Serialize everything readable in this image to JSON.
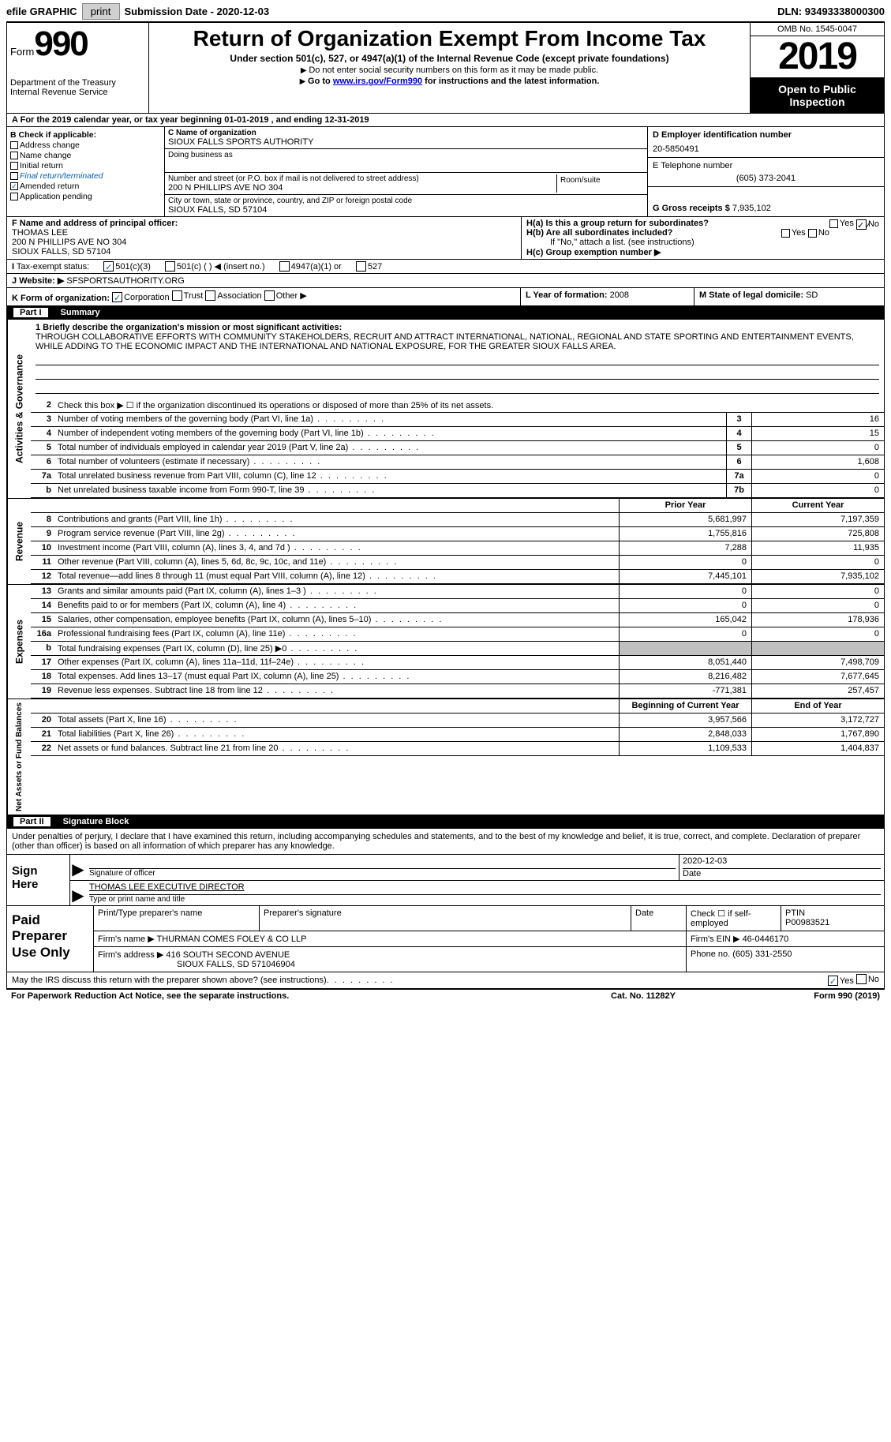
{
  "topbar": {
    "efile": "efile GRAPHIC",
    "print_btn": "print",
    "sub_date_lbl": "Submission Date - ",
    "sub_date": "2020-12-03",
    "dln_lbl": "DLN: ",
    "dln": "93493338000300"
  },
  "header": {
    "form_word": "Form",
    "form_num": "990",
    "dept": "Department of the Treasury\nInternal Revenue Service",
    "title": "Return of Organization Exempt From Income Tax",
    "subtitle": "Under section 501(c), 527, or 4947(a)(1) of the Internal Revenue Code (except private foundations)",
    "note1": "Do not enter social security numbers on this form as it may be made public.",
    "note2_pre": "Go to ",
    "note2_link": "www.irs.gov/Form990",
    "note2_post": " for instructions and the latest information.",
    "omb": "OMB No. 1545-0047",
    "year": "2019",
    "inspect": "Open to Public Inspection"
  },
  "row_a": "For the 2019 calendar year, or tax year beginning 01-01-2019   , and ending 12-31-2019",
  "col_b": {
    "head": "B Check if applicable:",
    "items": [
      "Address change",
      "Name change",
      "Initial return",
      "Final return/terminated",
      "Amended return",
      "Application pending"
    ],
    "checked_idx": 4
  },
  "col_c": {
    "name_lbl": "C Name of organization",
    "name": "SIOUX FALLS SPORTS AUTHORITY",
    "dba_lbl": "Doing business as",
    "addr_lbl": "Number and street (or P.O. box if mail is not delivered to street address)",
    "room_lbl": "Room/suite",
    "addr": "200 N PHILLIPS AVE NO 304",
    "city_lbl": "City or town, state or province, country, and ZIP or foreign postal code",
    "city": "SIOUX FALLS, SD  57104"
  },
  "col_d": {
    "ein_lbl": "D Employer identification number",
    "ein": "20-5850491",
    "tel_lbl": "E Telephone number",
    "tel": "(605) 373-2041",
    "gross_lbl": "G Gross receipts $ ",
    "gross": "7,935,102"
  },
  "row_f": {
    "lbl": "F Name and address of principal officer:",
    "name": "THOMAS LEE",
    "addr1": "200 N PHILLIPS AVE NO 304",
    "addr2": "SIOUX FALLS, SD  57104"
  },
  "row_h": {
    "ha": "H(a)  Is this a group return for subordinates?",
    "hb": "H(b)  Are all subordinates included?",
    "hb_note": "If \"No,\" attach a list. (see instructions)",
    "hc": "H(c)  Group exemption number ▶",
    "yes": "Yes",
    "no": "No"
  },
  "row_i": {
    "lbl": "Tax-exempt status:",
    "opts": [
      "501(c)(3)",
      "501(c) (  ) ◀ (insert no.)",
      "4947(a)(1) or",
      "527"
    ],
    "checked_idx": 0
  },
  "row_j": {
    "lbl": "Website: ▶",
    "val": "SFSPORTSAUTHORITY.ORG"
  },
  "row_k": {
    "lbl": "K Form of organization:",
    "opts": [
      "Corporation",
      "Trust",
      "Association",
      "Other ▶"
    ],
    "checked_idx": 0,
    "l_lbl": "L Year of formation: ",
    "l_val": "2008",
    "m_lbl": "M State of legal domicile: ",
    "m_val": "SD"
  },
  "part1": {
    "no": "Part I",
    "title": "Summary"
  },
  "mission": {
    "lead": "1   Briefly describe the organization's mission or most significant activities:",
    "text": "THROUGH COLLABORATIVE EFFORTS WITH COMMUNITY STAKEHOLDERS, RECRUIT AND ATTRACT INTERNATIONAL, NATIONAL, REGIONAL AND STATE SPORTING AND ENTERTAINMENT EVENTS, WHILE ADDING TO THE ECONOMIC IMPACT AND THE INTERNATIONAL AND NATIONAL EXPOSURE, FOR THE GREATER SIOUX FALLS AREA."
  },
  "gov_lines": [
    {
      "n": "2",
      "t": "Check this box ▶ ☐  if the organization discontinued its operations or disposed of more than 25% of its net assets."
    },
    {
      "n": "3",
      "t": "Number of voting members of the governing body (Part VI, line 1a)",
      "k": "3",
      "v": "16"
    },
    {
      "n": "4",
      "t": "Number of independent voting members of the governing body (Part VI, line 1b)",
      "k": "4",
      "v": "15"
    },
    {
      "n": "5",
      "t": "Total number of individuals employed in calendar year 2019 (Part V, line 2a)",
      "k": "5",
      "v": "0"
    },
    {
      "n": "6",
      "t": "Total number of volunteers (estimate if necessary)",
      "k": "6",
      "v": "1,608"
    },
    {
      "n": "7a",
      "t": "Total unrelated business revenue from Part VIII, column (C), line 12",
      "k": "7a",
      "v": "0"
    },
    {
      "n": "b",
      "t": "Net unrelated business taxable income from Form 990-T, line 39",
      "k": "7b",
      "v": "0"
    }
  ],
  "twocol_hdr": {
    "prior": "Prior Year",
    "curr": "Current Year"
  },
  "rev_lines": [
    {
      "n": "8",
      "t": "Contributions and grants (Part VIII, line 1h)",
      "p": "5,681,997",
      "c": "7,197,359"
    },
    {
      "n": "9",
      "t": "Program service revenue (Part VIII, line 2g)",
      "p": "1,755,816",
      "c": "725,808"
    },
    {
      "n": "10",
      "t": "Investment income (Part VIII, column (A), lines 3, 4, and 7d )",
      "p": "7,288",
      "c": "11,935"
    },
    {
      "n": "11",
      "t": "Other revenue (Part VIII, column (A), lines 5, 6d, 8c, 9c, 10c, and 11e)",
      "p": "0",
      "c": "0"
    },
    {
      "n": "12",
      "t": "Total revenue—add lines 8 through 11 (must equal Part VIII, column (A), line 12)",
      "p": "7,445,101",
      "c": "7,935,102"
    }
  ],
  "exp_lines": [
    {
      "n": "13",
      "t": "Grants and similar amounts paid (Part IX, column (A), lines 1–3 )",
      "p": "0",
      "c": "0"
    },
    {
      "n": "14",
      "t": "Benefits paid to or for members (Part IX, column (A), line 4)",
      "p": "0",
      "c": "0"
    },
    {
      "n": "15",
      "t": "Salaries, other compensation, employee benefits (Part IX, column (A), lines 5–10)",
      "p": "165,042",
      "c": "178,936"
    },
    {
      "n": "16a",
      "t": "Professional fundraising fees (Part IX, column (A), line 11e)",
      "p": "0",
      "c": "0"
    },
    {
      "n": "b",
      "t": "Total fundraising expenses (Part IX, column (D), line 25) ▶0",
      "p": "",
      "c": "",
      "shade": true
    },
    {
      "n": "17",
      "t": "Other expenses (Part IX, column (A), lines 11a–11d, 11f–24e)",
      "p": "8,051,440",
      "c": "7,498,709"
    },
    {
      "n": "18",
      "t": "Total expenses. Add lines 13–17 (must equal Part IX, column (A), line 25)",
      "p": "8,216,482",
      "c": "7,677,645"
    },
    {
      "n": "19",
      "t": "Revenue less expenses. Subtract line 18 from line 12",
      "p": "-771,381",
      "c": "257,457"
    }
  ],
  "na_hdr": {
    "prior": "Beginning of Current Year",
    "curr": "End of Year"
  },
  "na_lines": [
    {
      "n": "20",
      "t": "Total assets (Part X, line 16)",
      "p": "3,957,566",
      "c": "3,172,727"
    },
    {
      "n": "21",
      "t": "Total liabilities (Part X, line 26)",
      "p": "2,848,033",
      "c": "1,767,890"
    },
    {
      "n": "22",
      "t": "Net assets or fund balances. Subtract line 21 from line 20",
      "p": "1,109,533",
      "c": "1,404,837"
    }
  ],
  "part2": {
    "no": "Part II",
    "title": "Signature Block"
  },
  "sig_intro": "Under penalties of perjury, I declare that I have examined this return, including accompanying schedules and statements, and to the best of my knowledge and belief, it is true, correct, and complete. Declaration of preparer (other than officer) is based on all information of which preparer has any knowledge.",
  "sign": {
    "here": "Sign Here",
    "sig_lbl": "Signature of officer",
    "date_lbl": "Date",
    "date": "2020-12-03",
    "name": "THOMAS LEE  EXECUTIVE DIRECTOR",
    "name_lbl": "Type or print name and title"
  },
  "prep": {
    "here": "Paid Preparer Use Only",
    "r1": {
      "c1": "Print/Type preparer's name",
      "c2": "Preparer's signature",
      "c3": "Date",
      "c4": "Check ☐ if self-employed",
      "c5_lbl": "PTIN",
      "c5": "P00983521"
    },
    "r2": {
      "lbl": "Firm's name    ▶",
      "val": "THURMAN COMES FOLEY & CO LLP",
      "ein_lbl": "Firm's EIN ▶",
      "ein": "46-0446170"
    },
    "r3": {
      "lbl": "Firm's address ▶",
      "val1": "416 SOUTH SECOND AVENUE",
      "val2": "SIOUX FALLS, SD  571046904",
      "ph_lbl": "Phone no.",
      "ph": "(605) 331-2550"
    }
  },
  "footer": {
    "discuss": "May the IRS discuss this return with the preparer shown above? (see instructions)",
    "yes": "Yes",
    "no": "No",
    "pra": "For Paperwork Reduction Act Notice, see the separate instructions.",
    "cat": "Cat. No. 11282Y",
    "form": "Form 990 (2019)"
  },
  "vlabels": {
    "gov": "Activities & Governance",
    "rev": "Revenue",
    "exp": "Expenses",
    "na": "Net Assets or Fund Balances"
  }
}
